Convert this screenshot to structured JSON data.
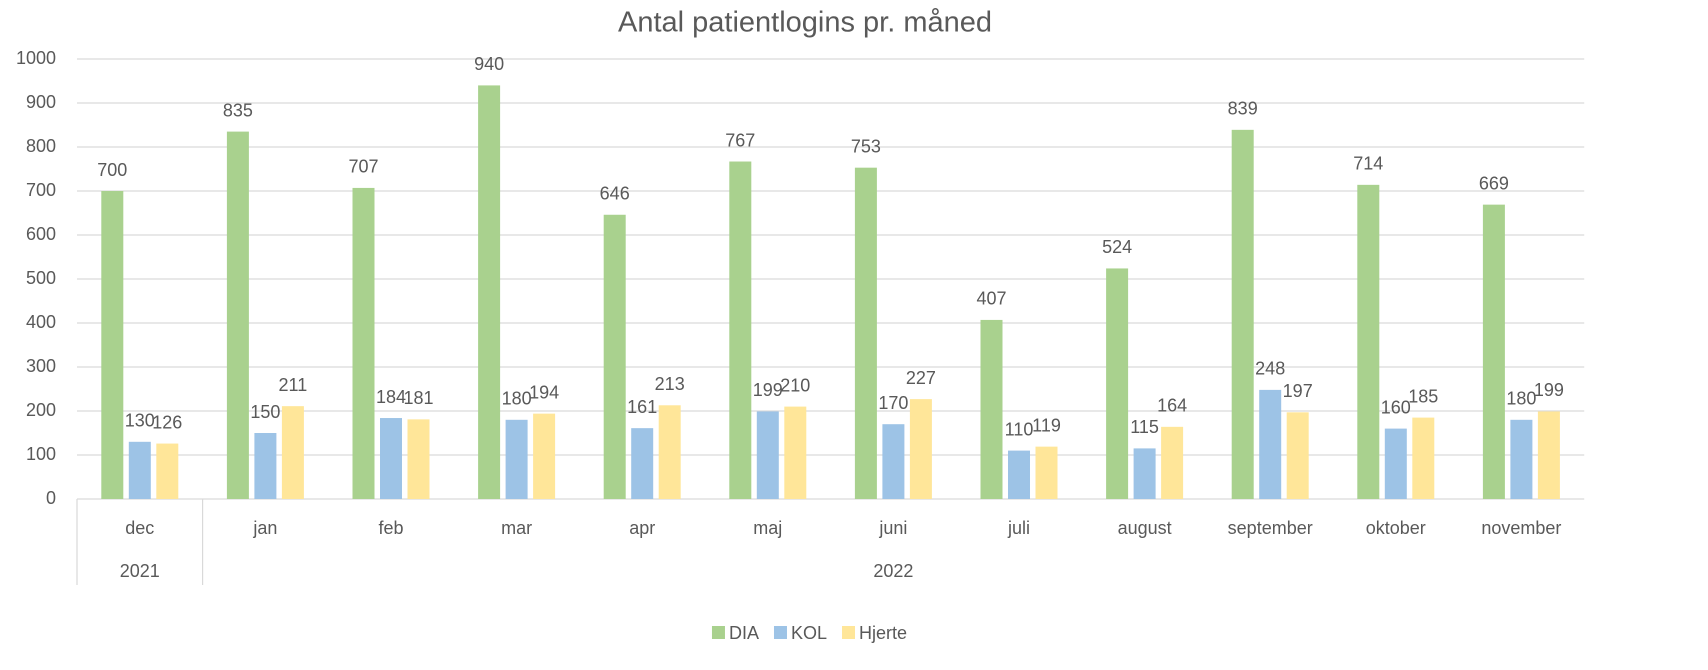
{
  "chart_data": {
    "type": "bar",
    "title": "Antal patientlogins pr. måned",
    "categories": [
      "dec",
      "jan",
      "feb",
      "mar",
      "apr",
      "maj",
      "juni",
      "juli",
      "august",
      "september",
      "oktober",
      "november"
    ],
    "category_groups": [
      "2021",
      "2022",
      null,
      null,
      null,
      null,
      null,
      null,
      null,
      null,
      null,
      null
    ],
    "series": [
      {
        "name": "DIA",
        "color": "#a9d18e",
        "values": [
          700,
          835,
          707,
          940,
          646,
          767,
          753,
          407,
          524,
          839,
          714,
          669
        ]
      },
      {
        "name": "KOL",
        "color": "#9dc3e6",
        "values": [
          130,
          150,
          184,
          180,
          161,
          199,
          170,
          110,
          115,
          248,
          160,
          180
        ]
      },
      {
        "name": "Hjerte",
        "color": "#ffe699",
        "values": [
          126,
          211,
          181,
          194,
          213,
          210,
          227,
          119,
          164,
          197,
          185,
          199
        ]
      }
    ],
    "ylim": [
      0,
      1000
    ],
    "yticks": [
      0,
      100,
      200,
      300,
      400,
      500,
      600,
      700,
      800,
      900,
      1000
    ],
    "grid": true,
    "legend": "bottom"
  }
}
